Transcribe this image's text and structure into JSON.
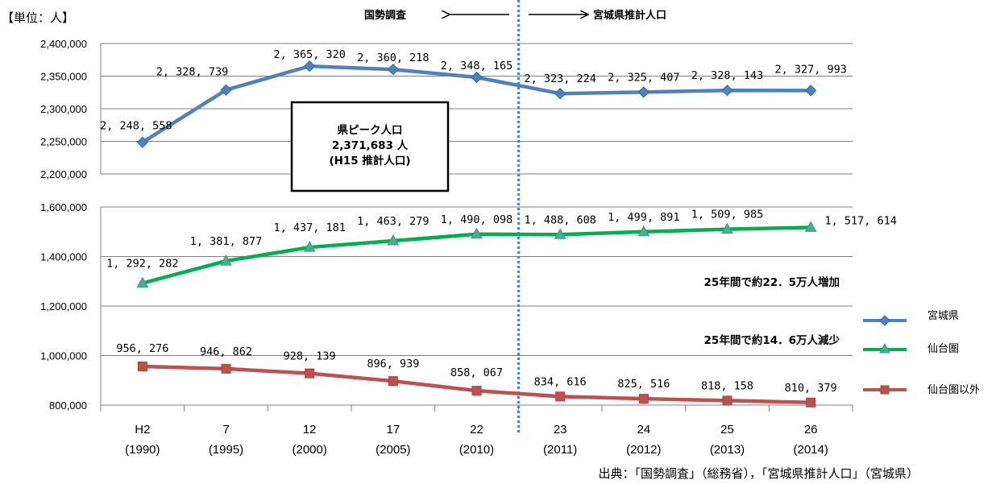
{
  "unit_label": "【単位：人】",
  "header_left": "国勢調査",
  "header_right": "宮城県推計人口",
  "peak_box": {
    "line1": "県ピーク人口",
    "line2": "2,371,683 人",
    "line3": "(H15 推計人口)"
  },
  "annotation_increase": "25年間で約22．5万人増加",
  "annotation_decrease": "25年間で約14．6万人減少",
  "source": "出典：「国勢調査」（総務省），「宮城県推計人口」（宮城県）",
  "colors": {
    "miyagi": "#4F81BD",
    "sendai": "#00B050",
    "outside": "#C0504D",
    "divider": "#4F81BD",
    "grid": "#808080"
  },
  "chart_data": {
    "type": "line",
    "categories": [
      {
        "top": "H2",
        "bottom": "(1990)"
      },
      {
        "top": "7",
        "bottom": "(1995)"
      },
      {
        "top": "12",
        "bottom": "(2000)"
      },
      {
        "top": "17",
        "bottom": "(2005)"
      },
      {
        "top": "22",
        "bottom": "(2010)"
      },
      {
        "top": "23",
        "bottom": "(2011)"
      },
      {
        "top": "24",
        "bottom": "(2012)"
      },
      {
        "top": "25",
        "bottom": "(2013)"
      },
      {
        "top": "26",
        "bottom": "(2014)"
      }
    ],
    "upper_axis": {
      "ylim": [
        2200000,
        2400000
      ],
      "ticks": [
        "2,200,000",
        "2,250,000",
        "2,300,000",
        "2,350,000",
        "2,400,000"
      ],
      "tick_values": [
        2200000,
        2250000,
        2300000,
        2350000,
        2400000
      ]
    },
    "lower_axis": {
      "ylim": [
        800000,
        1600000
      ],
      "ticks": [
        "800,000",
        "1,000,000",
        "1,200,000",
        "1,400,000",
        "1,600,000"
      ],
      "tick_values": [
        800000,
        1000000,
        1200000,
        1400000,
        1600000
      ]
    },
    "series": [
      {
        "name": "宮城県",
        "axis": "upper",
        "marker": "diamond",
        "color": "#4F81BD",
        "values": [
          2248558,
          2328739,
          2365320,
          2360218,
          2348165,
          2323224,
          2325407,
          2328143,
          2327993
        ],
        "labels": [
          "2, 248, 558",
          "2, 328, 739",
          "2, 365, 320",
          "2, 360, 218",
          "2, 348, 165",
          "2, 323, 224",
          "2, 325, 407",
          "2, 328, 143",
          "2, 327, 993"
        ]
      },
      {
        "name": "仙台圏",
        "axis": "lower",
        "marker": "triangle",
        "color": "#00B050",
        "values": [
          1292282,
          1381877,
          1437181,
          1463279,
          1490098,
          1488608,
          1499891,
          1509985,
          1517614
        ],
        "labels": [
          "1, 292, 282",
          "1, 381, 877",
          "1, 437, 181",
          "1, 463, 279",
          "1, 490, 098",
          "1, 488, 608",
          "1, 499, 891",
          "1, 509, 985",
          "1, 517, 614"
        ]
      },
      {
        "name": "仙台圏以外",
        "axis": "lower",
        "marker": "square",
        "color": "#C0504D",
        "values": [
          956276,
          946862,
          928139,
          896939,
          858067,
          834616,
          825516,
          818158,
          810379
        ],
        "labels": [
          "956, 276",
          "946, 862",
          "928, 139",
          "896, 939",
          "858, 067",
          "834, 616",
          "825, 516",
          "818, 158",
          "810, 379"
        ]
      }
    ],
    "grid": true,
    "legend": "right"
  }
}
